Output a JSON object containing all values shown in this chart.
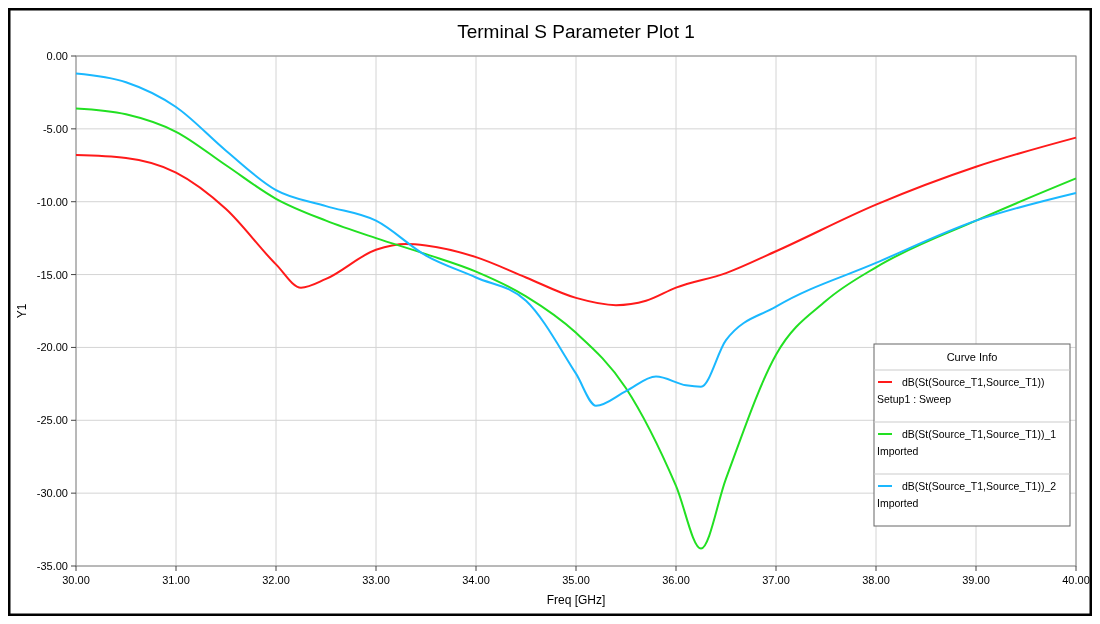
{
  "chart_data": {
    "type": "line",
    "title": "Terminal S Parameter Plot 1",
    "xlabel": "Freq [GHz]",
    "ylabel": "Y1",
    "legend_title": "Curve Info",
    "legend": "bottom right",
    "grid": true,
    "line_style": "solid",
    "xlim": [
      30,
      40
    ],
    "ylim": [
      -35,
      0
    ],
    "xticks": [
      {
        "value": 30,
        "label": "30.00"
      },
      {
        "value": 31,
        "label": "31.00"
      },
      {
        "value": 32,
        "label": "32.00"
      },
      {
        "value": 33,
        "label": "33.00"
      },
      {
        "value": 34,
        "label": "34.00"
      },
      {
        "value": 35,
        "label": "35.00"
      },
      {
        "value": 36,
        "label": "36.00"
      },
      {
        "value": 37,
        "label": "37.00"
      },
      {
        "value": 38,
        "label": "38.00"
      },
      {
        "value": 39,
        "label": "39.00"
      },
      {
        "value": 40,
        "label": "40.00"
      }
    ],
    "yticks": [
      {
        "value": -35,
        "label": "-35.00"
      },
      {
        "value": -30,
        "label": "-30.00"
      },
      {
        "value": -25,
        "label": "-25.00"
      },
      {
        "value": -20,
        "label": "-20.00"
      },
      {
        "value": -15,
        "label": "-15.00"
      },
      {
        "value": -10,
        "label": "-10.00"
      },
      {
        "value": -5,
        "label": "-5.00"
      },
      {
        "value": 0,
        "label": "0.00"
      }
    ],
    "series": [
      {
        "name": "dB(St(Source_T1,Source_T1))\nSetup1 : Sweep",
        "color": "#ff1a1a",
        "x": [
          30,
          30.5,
          31,
          31.5,
          32,
          32.25,
          32.5,
          33,
          33.3,
          33.5,
          34,
          34.5,
          35,
          35.4,
          35.7,
          36,
          36.5,
          37,
          38,
          39,
          40
        ],
        "values": [
          -6.8,
          -7.0,
          -8.0,
          -10.5,
          -14.3,
          -15.9,
          -15.3,
          -13.3,
          -12.9,
          -13.0,
          -13.8,
          -15.2,
          -16.6,
          -17.1,
          -16.8,
          -15.9,
          -14.9,
          -13.4,
          -10.2,
          -7.6,
          -5.6
        ]
      },
      {
        "name": "dB(St(Source_T1,Source_T1))_1\nImported",
        "color": "#22e022",
        "x": [
          30,
          30.5,
          31,
          31.5,
          32,
          32.5,
          33,
          33.5,
          34,
          34.5,
          35,
          35.5,
          36,
          36.25,
          36.5,
          37,
          37.5,
          38,
          39,
          40
        ],
        "values": [
          -3.6,
          -4.0,
          -5.2,
          -7.5,
          -9.8,
          -11.3,
          -12.5,
          -13.6,
          -14.8,
          -16.5,
          -19.0,
          -22.8,
          -29.5,
          -33.8,
          -29.0,
          -20.5,
          -16.8,
          -14.5,
          -11.3,
          -8.4
        ]
      },
      {
        "name": "dB(St(Source_T1,Source_T1))_2\nImported",
        "color": "#1ab8ff",
        "x": [
          30,
          30.5,
          31,
          31.5,
          32,
          32.5,
          33,
          33.5,
          34,
          34.5,
          35,
          35.2,
          35.5,
          35.8,
          36.1,
          36.25,
          36.5,
          37,
          38,
          39,
          40
        ],
        "values": [
          -1.2,
          -1.8,
          -3.5,
          -6.5,
          -9.2,
          -10.3,
          -11.3,
          -13.7,
          -15.2,
          -16.8,
          -21.8,
          -24.0,
          -23.0,
          -22.0,
          -22.6,
          -22.7,
          -19.5,
          -17.2,
          -14.2,
          -11.3,
          -9.4
        ]
      }
    ]
  }
}
